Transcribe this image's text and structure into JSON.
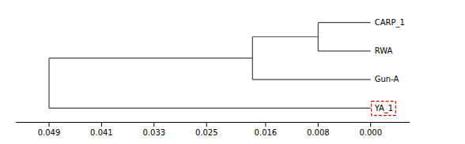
{
  "chart_data": {
    "type": "dendrogram",
    "tree": {
      "height": 0.049,
      "children": [
        {
          "height": 0.018,
          "children": [
            {
              "height": 0.008,
              "children": [
                {
                  "name": "CARP_1",
                  "height": 0.0
                },
                {
                  "name": "RWA",
                  "height": 0.0
                }
              ]
            },
            {
              "name": "Gun-A",
              "height": 0.0
            }
          ]
        },
        {
          "name": "YA_1",
          "height": 0.0
        }
      ]
    },
    "color": "#444444",
    "xlim": [
      0.054,
      -0.006
    ],
    "xticks": [
      0.049,
      0.041,
      0.033,
      0.025,
      0.016,
      0.008,
      {
        "value": 0,
        "label": "0.000"
      }
    ],
    "highlight": {
      "label": "YA_1",
      "color": "#cc0000"
    }
  }
}
